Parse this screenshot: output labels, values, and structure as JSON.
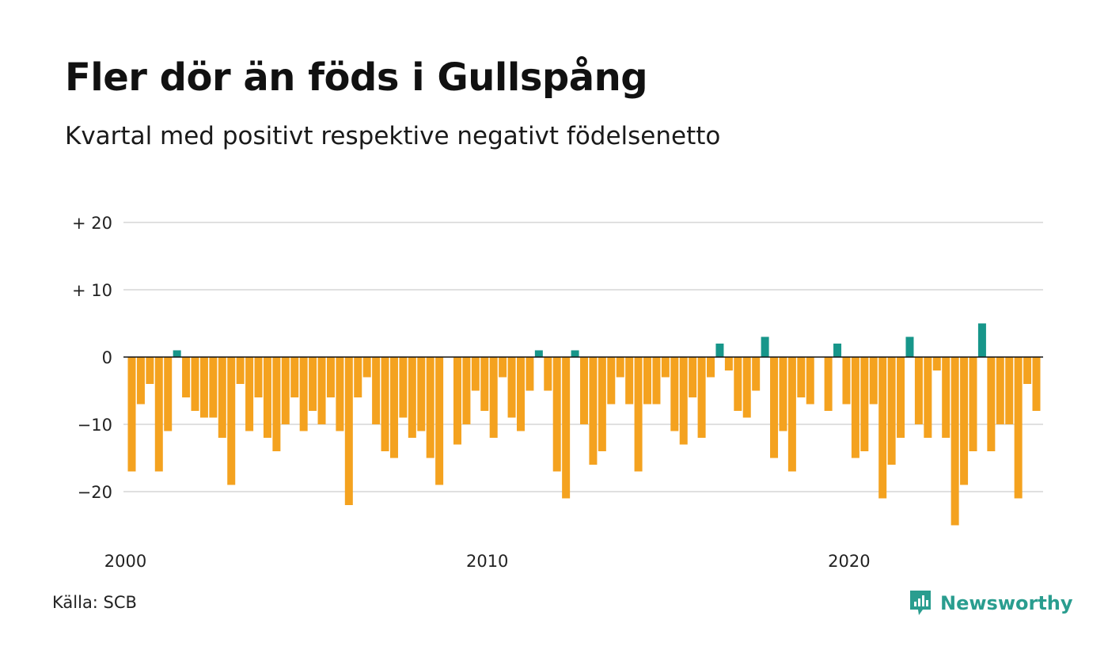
{
  "title": "Fler dör än föds i Gullspång",
  "subtitle": "Kvartal med positivt respektive negativt födelsenetto",
  "source": "Källa: SCB",
  "brand": "Newsworthy",
  "colors": {
    "negative": "#f4a21f",
    "positive": "#17968a",
    "grid": "#e0e0e0",
    "zero_line": "#111111",
    "brand": "#2a9d8f"
  },
  "chart_data": {
    "type": "bar",
    "start": "2000 Q1",
    "frequency": "quarterly",
    "values": [
      -17,
      -7,
      -4,
      -17,
      -11,
      1,
      -6,
      -8,
      -9,
      -9,
      -12,
      -19,
      -4,
      -11,
      -6,
      -12,
      -14,
      -10,
      -6,
      -11,
      -8,
      -10,
      -6,
      -11,
      -22,
      -6,
      -3,
      -10,
      -14,
      -15,
      -9,
      -12,
      -11,
      -15,
      -19,
      0,
      -13,
      -10,
      -5,
      -8,
      -12,
      -3,
      -9,
      -11,
      -5,
      1,
      -5,
      -17,
      -21,
      1,
      -10,
      -16,
      -14,
      -7,
      -3,
      -7,
      -17,
      -7,
      -7,
      -3,
      -11,
      -13,
      -6,
      -12,
      -3,
      2,
      -2,
      -8,
      -9,
      -5,
      3,
      -15,
      -11,
      -17,
      -6,
      -7,
      0,
      -8,
      2,
      -7,
      -15,
      -14,
      -7,
      -21,
      -16,
      -12,
      3,
      -10,
      -12,
      -2,
      -12,
      -25,
      -19,
      -14,
      5,
      -14,
      -10,
      -10,
      -21,
      -4,
      -8
    ],
    "x_ticks": [
      "2000",
      "2010",
      "2020"
    ],
    "y_ticks": [
      {
        "value": 20,
        "label": "+ 20"
      },
      {
        "value": 10,
        "label": "+ 10"
      },
      {
        "value": 0,
        "label": "0"
      },
      {
        "value": -10,
        "label": "−10"
      },
      {
        "value": -20,
        "label": "−20"
      }
    ],
    "ylim": [
      -26,
      20
    ],
    "xlabel": "",
    "ylabel": "",
    "grid": true
  }
}
